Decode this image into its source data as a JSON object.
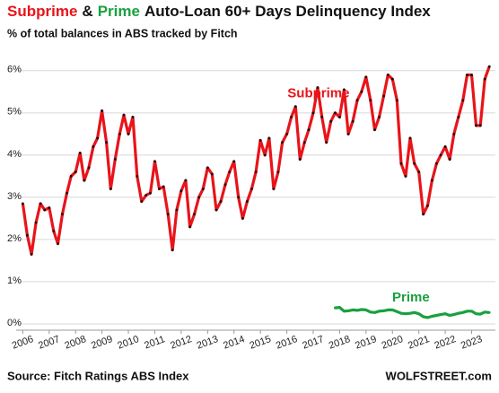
{
  "chart_data": {
    "type": "line",
    "title_parts": [
      {
        "text": "Subprime",
        "color": "#e8141a"
      },
      {
        "text": "&",
        "color": "#111111"
      },
      {
        "text": "Prime",
        "color": "#1aa040"
      },
      {
        "text": "Auto-Loan 60+ Days Delinquency Index",
        "color": "#111111"
      }
    ],
    "subtitle": "% of total balances in ABS tracked by Fitch",
    "source": "Source: Fitch Ratings ABS Index",
    "watermark": "WOLFSTREET.com",
    "xlim": [
      2005.75,
      2023.9
    ],
    "xticks": [
      2006,
      2007,
      2008,
      2009,
      2010,
      2011,
      2012,
      2013,
      2014,
      2015,
      2016,
      2017,
      2018,
      2019,
      2020,
      2021,
      2022,
      2023
    ],
    "ylim": [
      -0.15,
      6.4
    ],
    "yticks": [
      {
        "value": 0,
        "label": "0%"
      },
      {
        "value": 1,
        "label": "1%"
      },
      {
        "value": 2,
        "label": "2%"
      },
      {
        "value": 3,
        "label": "3%"
      },
      {
        "value": 4,
        "label": "4%"
      },
      {
        "value": 5,
        "label": "5%"
      },
      {
        "value": 6,
        "label": "6%"
      }
    ],
    "grid": true,
    "series": [
      {
        "name": "Subprime",
        "color": "#e8141a",
        "marker_color": "#111111",
        "label_x": 2017.2,
        "label_y": 5.45,
        "x": [
          2006,
          2006.17,
          2006.33,
          2006.5,
          2006.67,
          2006.83,
          2007,
          2007.17,
          2007.33,
          2007.5,
          2007.67,
          2007.83,
          2008,
          2008.17,
          2008.33,
          2008.5,
          2008.67,
          2008.83,
          2009,
          2009.17,
          2009.33,
          2009.5,
          2009.67,
          2009.83,
          2010,
          2010.17,
          2010.33,
          2010.5,
          2010.67,
          2010.83,
          2011,
          2011.17,
          2011.33,
          2011.5,
          2011.67,
          2011.83,
          2012,
          2012.17,
          2012.33,
          2012.5,
          2012.67,
          2012.83,
          2013,
          2013.17,
          2013.33,
          2013.5,
          2013.67,
          2013.83,
          2014,
          2014.17,
          2014.33,
          2014.5,
          2014.67,
          2014.83,
          2015,
          2015.17,
          2015.33,
          2015.5,
          2015.67,
          2015.83,
          2016,
          2016.17,
          2016.33,
          2016.5,
          2016.67,
          2016.83,
          2017,
          2017.17,
          2017.33,
          2017.5,
          2017.67,
          2017.83,
          2018,
          2018.17,
          2018.33,
          2018.5,
          2018.67,
          2018.83,
          2019,
          2019.17,
          2019.33,
          2019.5,
          2019.67,
          2019.83,
          2020,
          2020.17,
          2020.33,
          2020.5,
          2020.67,
          2020.83,
          2021,
          2021.17,
          2021.33,
          2021.5,
          2021.67,
          2021.83,
          2022,
          2022.17,
          2022.33,
          2022.5,
          2022.67,
          2022.83,
          2023,
          2023.17,
          2023.33,
          2023.5,
          2023.67
        ],
        "values": [
          2.85,
          2.1,
          1.65,
          2.4,
          2.85,
          2.7,
          2.75,
          2.2,
          1.9,
          2.6,
          3.1,
          3.5,
          3.6,
          4.05,
          3.4,
          3.7,
          4.2,
          4.4,
          5.05,
          4.3,
          3.2,
          3.9,
          4.5,
          4.95,
          4.5,
          4.9,
          3.5,
          2.9,
          3.05,
          3.1,
          3.85,
          3.2,
          3.25,
          2.6,
          1.75,
          2.7,
          3.15,
          3.4,
          2.3,
          2.6,
          3.0,
          3.2,
          3.7,
          3.55,
          2.7,
          2.9,
          3.3,
          3.6,
          3.85,
          3.0,
          2.5,
          2.9,
          3.2,
          3.6,
          4.35,
          4.0,
          4.4,
          3.2,
          3.6,
          4.3,
          4.5,
          4.9,
          5.15,
          3.9,
          4.3,
          4.6,
          5.0,
          5.6,
          4.9,
          4.3,
          4.8,
          5.0,
          4.9,
          5.55,
          4.5,
          4.8,
          5.3,
          5.5,
          5.85,
          5.3,
          4.6,
          4.9,
          5.4,
          5.9,
          5.8,
          5.3,
          3.8,
          3.5,
          4.4,
          3.8,
          3.6,
          2.6,
          2.8,
          3.4,
          3.8,
          4.0,
          4.2,
          3.9,
          4.5,
          4.9,
          5.3,
          5.9,
          5.9,
          4.7,
          4.7,
          5.8,
          6.1
        ]
      },
      {
        "name": "Prime",
        "color": "#1aa040",
        "marker_color": "#1aa040",
        "label_x": 2020.7,
        "label_y": 0.62,
        "x": [
          2017.83,
          2018,
          2018.17,
          2018.33,
          2018.5,
          2018.67,
          2018.83,
          2019,
          2019.17,
          2019.33,
          2019.5,
          2019.67,
          2019.83,
          2020,
          2020.17,
          2020.33,
          2020.5,
          2020.67,
          2020.83,
          2021,
          2021.17,
          2021.33,
          2021.5,
          2021.67,
          2021.83,
          2022,
          2022.17,
          2022.33,
          2022.5,
          2022.67,
          2022.83,
          2023,
          2023.17,
          2023.33,
          2023.5,
          2023.67
        ],
        "values": [
          0.38,
          0.39,
          0.3,
          0.31,
          0.33,
          0.32,
          0.34,
          0.33,
          0.28,
          0.27,
          0.3,
          0.31,
          0.33,
          0.33,
          0.29,
          0.25,
          0.24,
          0.25,
          0.27,
          0.24,
          0.17,
          0.15,
          0.18,
          0.2,
          0.22,
          0.24,
          0.2,
          0.22,
          0.25,
          0.27,
          0.3,
          0.3,
          0.24,
          0.23,
          0.28,
          0.27
        ]
      }
    ]
  }
}
